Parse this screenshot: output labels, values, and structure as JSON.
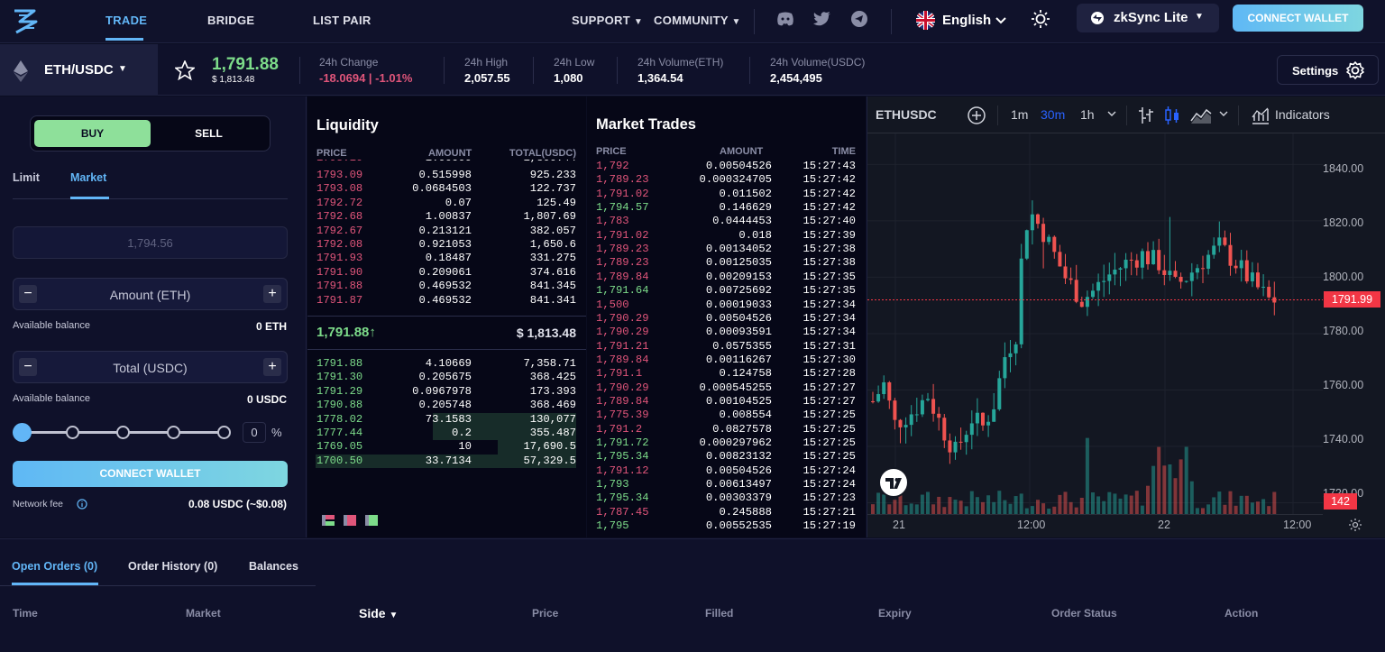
{
  "nav": {
    "links": [
      "TRADE",
      "BRIDGE",
      "LIST PAIR"
    ],
    "support": "SUPPORT",
    "community": "COMMUNITY",
    "language": "English",
    "network": "zkSync Lite",
    "connect": "CONNECT WALLET"
  },
  "market": {
    "pair": "ETH/USDC",
    "price": "1,791.88",
    "price_usd": "$ 1,813.48",
    "stats": [
      {
        "label": "24h Change",
        "value": "-18.0694 | -1.01%"
      },
      {
        "label": "24h High",
        "value": "2,057.55"
      },
      {
        "label": "24h Low",
        "value": "1,080"
      },
      {
        "label": "24h Volume(ETH)",
        "value": "1,364.54"
      },
      {
        "label": "24h Volume(USDC)",
        "value": "2,454,495"
      }
    ],
    "settings": "Settings"
  },
  "order_form": {
    "buy": "BUY",
    "sell": "SELL",
    "tab_limit": "Limit",
    "tab_market": "Market",
    "price_placeholder": "1,794.56",
    "amount_placeholder": "Amount (ETH)",
    "available_label": "Available balance",
    "available_eth": "0 ETH",
    "total_placeholder": "Total (USDC)",
    "available_usdc": "0 USDC",
    "percent_value": "0",
    "percent_sign": "%",
    "connect": "CONNECT WALLET",
    "fee_label": "Network fee",
    "fee_value": "0.08 USDC (~$0.08)"
  },
  "liquidity": {
    "title": "Liquidity",
    "headers": [
      "PRICE",
      "AMOUNT",
      "TOTAL(USDC)"
    ],
    "asks": [
      [
        "1793.09",
        "0.515998",
        "925.233"
      ],
      [
        "1793.08",
        "0.0684503",
        "122.737"
      ],
      [
        "1792.72",
        "0.07",
        "125.49"
      ],
      [
        "1792.68",
        "1.00837",
        "1,807.69"
      ],
      [
        "1792.67",
        "0.213121",
        "382.057"
      ],
      [
        "1792.08",
        "0.921053",
        "1,650.6"
      ],
      [
        "1791.93",
        "0.18487",
        "331.275"
      ],
      [
        "1791.90",
        "0.209061",
        "374.616"
      ],
      [
        "1791.88",
        "0.469532",
        "841.345"
      ],
      [
        "1791.87",
        "0.469532",
        "841.341"
      ]
    ],
    "mid_price": "1,791.88↑",
    "mid_usd": "$ 1,813.48",
    "bids": [
      [
        "1791.88",
        "4.10669",
        "7,358.71"
      ],
      [
        "1791.30",
        "0.205675",
        "368.425"
      ],
      [
        "1791.29",
        "0.0967978",
        "173.393"
      ],
      [
        "1790.88",
        "0.205748",
        "368.469"
      ],
      [
        "1778.02",
        "73.1583",
        "130,077"
      ],
      [
        "1777.44",
        "0.2",
        "355.487"
      ],
      [
        "1769.05",
        "10",
        "17,690.5"
      ],
      [
        "1700.50",
        "33.7134",
        "57,329.5"
      ]
    ],
    "bid_depth": [
      0,
      0,
      0,
      0,
      0.55,
      0.55,
      0.3,
      1
    ]
  },
  "trades": {
    "title": "Market Trades",
    "headers": [
      "PRICE",
      "AMOUNT",
      "TIME"
    ],
    "rows": [
      [
        "1,792",
        "0.00504526",
        "15:27:43",
        "r"
      ],
      [
        "1,789.23",
        "0.000324705",
        "15:27:42",
        "r"
      ],
      [
        "1,791.02",
        "0.011502",
        "15:27:42",
        "r"
      ],
      [
        "1,794.57",
        "0.146629",
        "15:27:42",
        "g"
      ],
      [
        "1,783",
        "0.0444453",
        "15:27:40",
        "r"
      ],
      [
        "1,791.02",
        "0.018",
        "15:27:39",
        "r"
      ],
      [
        "1,789.23",
        "0.00134052",
        "15:27:38",
        "r"
      ],
      [
        "1,789.23",
        "0.00125035",
        "15:27:38",
        "r"
      ],
      [
        "1,789.84",
        "0.00209153",
        "15:27:35",
        "r"
      ],
      [
        "1,791.64",
        "0.00725692",
        "15:27:35",
        "g"
      ],
      [
        "1,500",
        "0.00019033",
        "15:27:34",
        "r"
      ],
      [
        "1,790.29",
        "0.00504526",
        "15:27:34",
        "r"
      ],
      [
        "1,790.29",
        "0.00093591",
        "15:27:34",
        "r"
      ],
      [
        "1,791.21",
        "0.0575355",
        "15:27:31",
        "r"
      ],
      [
        "1,789.84",
        "0.00116267",
        "15:27:30",
        "r"
      ],
      [
        "1,791.1",
        "0.124758",
        "15:27:28",
        "r"
      ],
      [
        "1,790.29",
        "0.000545255",
        "15:27:27",
        "r"
      ],
      [
        "1,789.84",
        "0.00104525",
        "15:27:27",
        "r"
      ],
      [
        "1,775.39",
        "0.008554",
        "15:27:25",
        "r"
      ],
      [
        "1,791.2",
        "0.0827578",
        "15:27:25",
        "r"
      ],
      [
        "1,791.72",
        "0.000297962",
        "15:27:25",
        "g"
      ],
      [
        "1,795.34",
        "0.00823132",
        "15:27:25",
        "g"
      ],
      [
        "1,791.12",
        "0.00504526",
        "15:27:24",
        "r"
      ],
      [
        "1,793",
        "0.00613497",
        "15:27:24",
        "g"
      ],
      [
        "1,795.34",
        "0.00303379",
        "15:27:23",
        "g"
      ],
      [
        "1,787.45",
        "0.245888",
        "15:27:21",
        "r"
      ],
      [
        "1,795",
        "0.00552535",
        "15:27:19",
        "g"
      ]
    ]
  },
  "chart_toolbar": {
    "symbol": "ETHUSDC",
    "intervals": [
      "1m",
      "30m",
      "1h"
    ],
    "indicators": "Indicators"
  },
  "chart_data": {
    "type": "candlestick",
    "symbol": "ETHUSDC",
    "y_ticks": [
      "1840.00",
      "1820.00",
      "1800.00",
      "1780.00",
      "1760.00",
      "1740.00",
      "1720.00"
    ],
    "ylim": [
      1716,
      1851
    ],
    "x_ticks": [
      "21",
      "12:00",
      "22",
      "12:00"
    ],
    "last_price_label": "1791.99",
    "last_price": 1791.99,
    "volume_label": "142",
    "up_color": "#26a69a",
    "down_color": "#ef5350"
  },
  "bottom": {
    "tabs": [
      "Open Orders (0)",
      "Order History (0)",
      "Balances"
    ],
    "columns": [
      "Time",
      "Market",
      "Side",
      "Price",
      "Filled",
      "Expiry",
      "Order Status",
      "Action"
    ]
  }
}
